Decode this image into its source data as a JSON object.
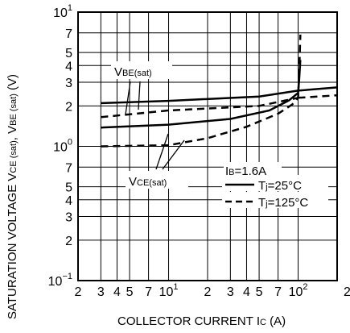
{
  "chart_data": {
    "type": "line",
    "x_scale": "log",
    "y_scale": "log",
    "xlim": [
      2,
      200
    ],
    "ylim": [
      0.1,
      10
    ],
    "grid": true,
    "xlabel": {
      "main": "COLLECTOR CURRENT",
      "sym": "I",
      "sub": "C",
      "unit": "(A)"
    },
    "ylabel": {
      "main": "SATURATION VOLTAGE",
      "parts": [
        {
          "t": "V",
          "s": "n"
        },
        {
          "t": "CE (sat)",
          "s": "s"
        },
        {
          "t": ", ",
          "s": "n"
        },
        {
          "t": "V",
          "s": "n"
        },
        {
          "t": "BE (sat)",
          "s": "s"
        },
        {
          "t": " (V)",
          "s": "n"
        }
      ]
    },
    "x_ticks": [
      {
        "v": 2,
        "b": "2"
      },
      {
        "v": 3,
        "b": "3"
      },
      {
        "v": 4,
        "b": "4"
      },
      {
        "v": 5,
        "b": "5"
      },
      {
        "v": 7,
        "b": "7"
      },
      {
        "v": 10,
        "b": "10",
        "e": "1"
      },
      {
        "v": 20,
        "b": "2"
      },
      {
        "v": 30,
        "b": "3"
      },
      {
        "v": 40,
        "b": "4"
      },
      {
        "v": 50,
        "b": "5"
      },
      {
        "v": 70,
        "b": "7"
      },
      {
        "v": 100,
        "b": "10",
        "e": "2"
      },
      {
        "v": 200,
        "b": "2"
      }
    ],
    "y_ticks": [
      {
        "v": 0.1,
        "b": "10",
        "e": "−1"
      },
      {
        "v": 0.2,
        "b": "2"
      },
      {
        "v": 0.3,
        "b": "3"
      },
      {
        "v": 0.4,
        "b": "4"
      },
      {
        "v": 0.5,
        "b": "5"
      },
      {
        "v": 0.7,
        "b": "7"
      },
      {
        "v": 1,
        "b": "10",
        "e": "0"
      },
      {
        "v": 2,
        "b": "2"
      },
      {
        "v": 3,
        "b": "3"
      },
      {
        "v": 4,
        "b": "4"
      },
      {
        "v": 5,
        "b": "5"
      },
      {
        "v": 7,
        "b": "7"
      },
      {
        "v": 10,
        "b": "10",
        "e": "1"
      }
    ],
    "gridlines": [
      3,
      4,
      5,
      7,
      10,
      20,
      30,
      40,
      50,
      70,
      100
    ],
    "series": [
      {
        "group": "VBE(sat)",
        "style": "solid",
        "x": [
          3,
          10,
          50,
          100
        ],
        "y": [
          2.1,
          2.18,
          2.35,
          2.6
        ]
      },
      {
        "group": "VBE(sat)",
        "style": "dashed",
        "x": [
          3,
          10,
          50,
          100
        ],
        "y": [
          1.65,
          1.85,
          2.0,
          2.3
        ]
      },
      {
        "group": "VCE(sat)",
        "style": "solid",
        "x": [
          3,
          10,
          30,
          60,
          85,
          100,
          102,
          104
        ],
        "y": [
          1.38,
          1.45,
          1.6,
          1.85,
          2.2,
          2.5,
          3.2,
          4.4
        ]
      },
      {
        "group": "VCE(sat)",
        "style": "dashed",
        "x": [
          3,
          10,
          20,
          40,
          70,
          90,
          100,
          102,
          104
        ],
        "y": [
          1.0,
          1.02,
          1.15,
          1.4,
          1.75,
          2.05,
          2.3,
          3.6,
          6.8
        ]
      }
    ],
    "right_extension": {
      "x": [
        100,
        200
      ],
      "solid_y": [
        2.6,
        2.75
      ],
      "dashed_y": [
        2.3,
        2.4
      ]
    },
    "label_vbe": {
      "base": "V",
      "sub": "BE(sat)"
    },
    "label_vce": {
      "base": "V",
      "sub": "CE(sat)"
    },
    "legend": {
      "placement": "bottom-right",
      "condition": {
        "base": "I",
        "sub": "B",
        "rest": "=1.6A"
      },
      "items": [
        {
          "style": "solid",
          "base": "T",
          "sub": "j",
          "rest": "=25°C"
        },
        {
          "style": "dashed",
          "base": "T",
          "sub": "j",
          "rest": "=125°C"
        }
      ]
    }
  }
}
